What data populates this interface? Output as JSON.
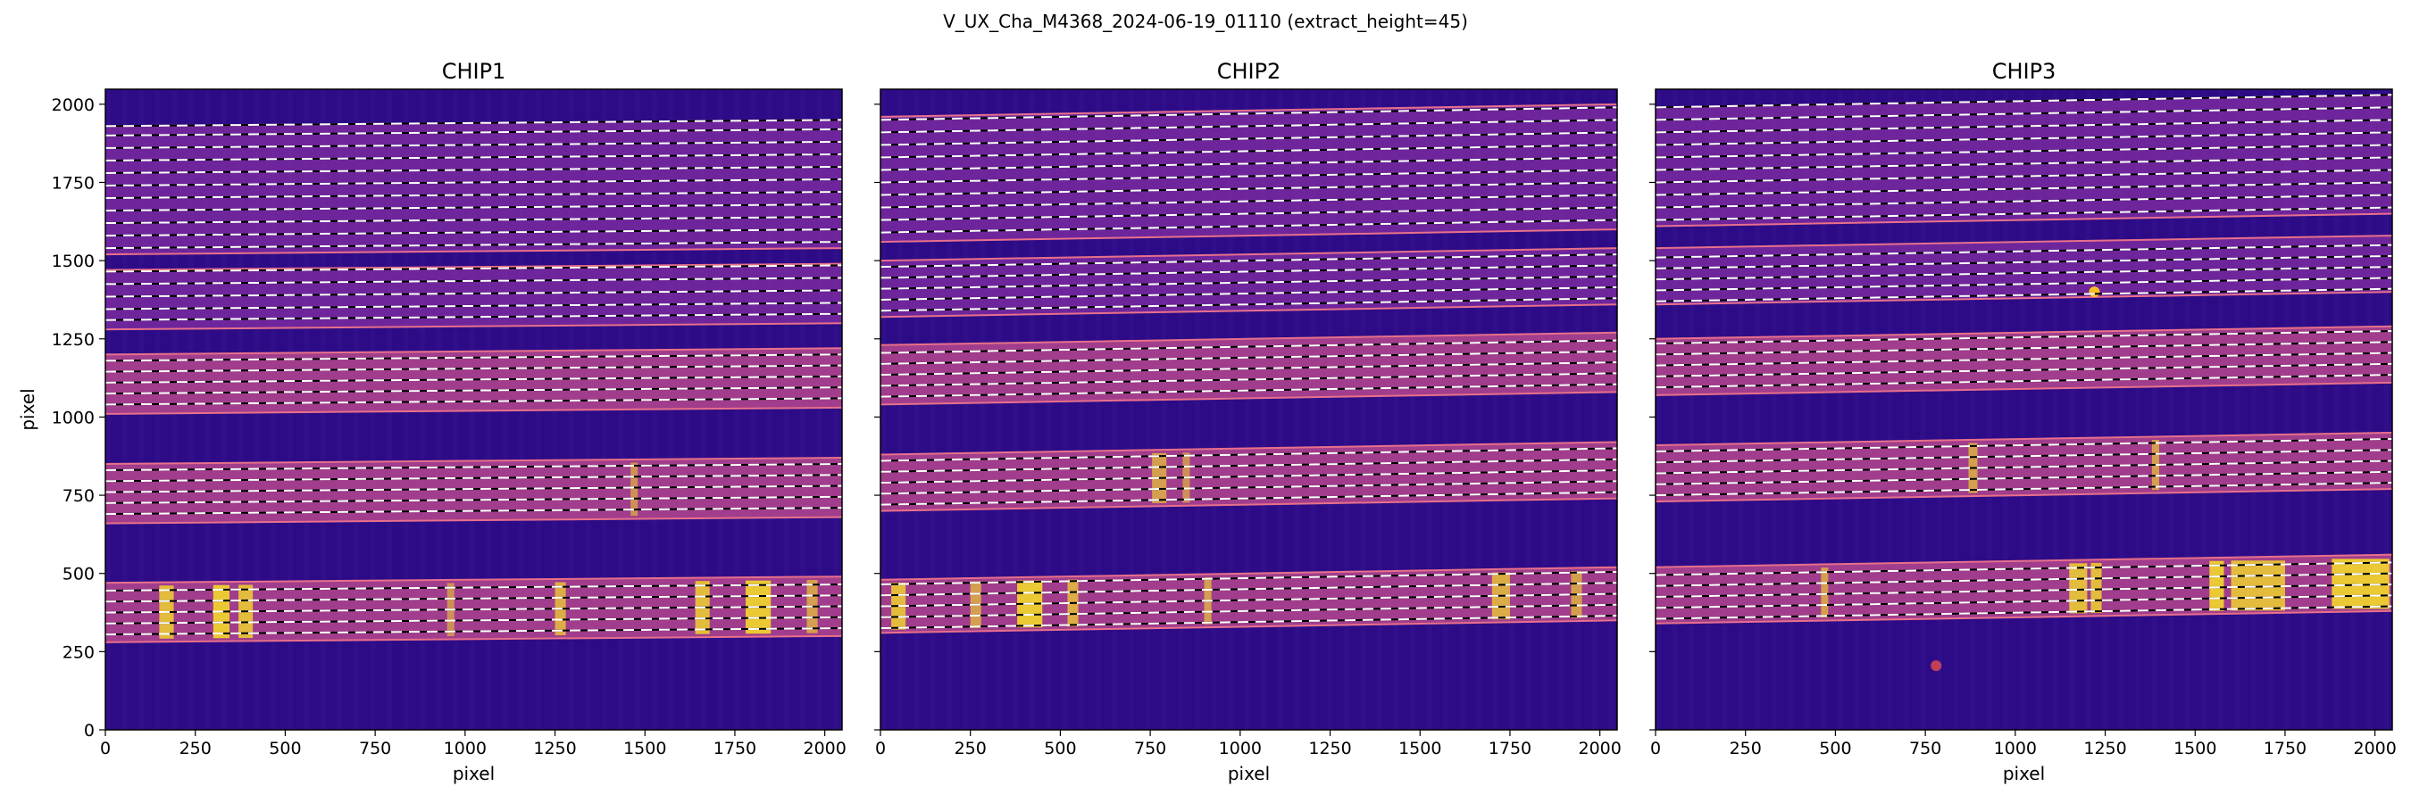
{
  "figure": {
    "suptitle": "V_UX_Cha_M4368_2024-06-19_01110  (extract_height=45)"
  },
  "colors": {
    "background": "#2d0b87",
    "trace_band": "#a8408c",
    "band_edge": "#e8708a",
    "bright_column": "#f7e225",
    "dashed_line_white": "#ffffff",
    "dashed_line_black": "#000000"
  },
  "chart_data": [
    {
      "type": "heatmap",
      "title": "CHIP1",
      "xlabel": "pixel",
      "ylabel": "pixel",
      "xlim": [
        0,
        2048
      ],
      "ylim": [
        0,
        2048
      ],
      "xticks": [
        0,
        250,
        500,
        750,
        1000,
        1250,
        1500,
        1750,
        2000
      ],
      "yticks": [
        0,
        250,
        500,
        750,
        1000,
        1250,
        1500,
        1750,
        2000
      ],
      "orders_drift_per_2048px": 20,
      "orders": [
        {
          "y_low": 1520,
          "y_high": 1930,
          "bright": false,
          "traces": [
            1540,
            1580,
            1620,
            1660,
            1700,
            1740,
            1780,
            1820,
            1860,
            1900,
            1930
          ]
        },
        {
          "y_low": 1280,
          "y_high": 1470,
          "bright": false,
          "traces": [
            1310,
            1345,
            1385,
            1425,
            1465
          ]
        },
        {
          "y_low": 1010,
          "y_high": 1200,
          "bright": true,
          "traces": [
            1040,
            1075,
            1110,
            1145,
            1180
          ]
        },
        {
          "y_low": 660,
          "y_high": 850,
          "bright": true,
          "traces": [
            690,
            725,
            760,
            795,
            830
          ]
        },
        {
          "y_low": 280,
          "y_high": 470,
          "bright": true,
          "traces": [
            305,
            340,
            375,
            410,
            445
          ]
        }
      ],
      "bright_columns": [
        {
          "x": 150,
          "width": 40,
          "y_band": [
            290,
            460
          ],
          "intensity": 0.9
        },
        {
          "x": 300,
          "width": 45,
          "y_band": [
            290,
            460
          ],
          "intensity": 1.0
        },
        {
          "x": 370,
          "width": 40,
          "y_band": [
            290,
            460
          ],
          "intensity": 0.9
        },
        {
          "x": 950,
          "width": 20,
          "y_band": [
            290,
            460
          ],
          "intensity": 0.6
        },
        {
          "x": 1250,
          "width": 30,
          "y_band": [
            290,
            460
          ],
          "intensity": 0.8
        },
        {
          "x": 1640,
          "width": 40,
          "y_band": [
            290,
            460
          ],
          "intensity": 0.9
        },
        {
          "x": 1780,
          "width": 70,
          "y_band": [
            290,
            460
          ],
          "intensity": 1.0
        },
        {
          "x": 1950,
          "width": 30,
          "y_band": [
            290,
            460
          ],
          "intensity": 0.7
        },
        {
          "x": 1460,
          "width": 20,
          "y_band": [
            670,
            840
          ],
          "intensity": 0.6
        }
      ]
    },
    {
      "type": "heatmap",
      "title": "CHIP2",
      "xlabel": "pixel",
      "ylabel": "",
      "xlim": [
        0,
        2048
      ],
      "ylim": [
        0,
        2048
      ],
      "xticks": [
        0,
        250,
        500,
        750,
        1000,
        1250,
        1500,
        1750,
        2000
      ],
      "yticks": [
        0,
        250,
        500,
        750,
        1000,
        1250,
        1500,
        1750,
        2000
      ],
      "orders_drift_per_2048px": 40,
      "orders": [
        {
          "y_low": 1560,
          "y_high": 1960,
          "bright": false,
          "traces": [
            1590,
            1630,
            1670,
            1710,
            1750,
            1790,
            1830,
            1870,
            1910,
            1950
          ]
        },
        {
          "y_low": 1320,
          "y_high": 1500,
          "bright": false,
          "traces": [
            1340,
            1375,
            1410,
            1445,
            1480
          ]
        },
        {
          "y_low": 1040,
          "y_high": 1230,
          "bright": true,
          "traces": [
            1065,
            1100,
            1135,
            1170,
            1205
          ]
        },
        {
          "y_low": 700,
          "y_high": 880,
          "bright": true,
          "traces": [
            720,
            755,
            790,
            825,
            860
          ]
        },
        {
          "y_low": 310,
          "y_high": 480,
          "bright": true,
          "traces": [
            325,
            360,
            395,
            430,
            465
          ]
        }
      ],
      "bright_columns": [
        {
          "x": 30,
          "width": 40,
          "y_band": [
            320,
            470
          ],
          "intensity": 0.9
        },
        {
          "x": 250,
          "width": 30,
          "y_band": [
            320,
            470
          ],
          "intensity": 0.7
        },
        {
          "x": 380,
          "width": 70,
          "y_band": [
            320,
            470
          ],
          "intensity": 1.0
        },
        {
          "x": 520,
          "width": 30,
          "y_band": [
            320,
            470
          ],
          "intensity": 0.8
        },
        {
          "x": 900,
          "width": 20,
          "y_band": [
            320,
            470
          ],
          "intensity": 0.7
        },
        {
          "x": 1700,
          "width": 50,
          "y_band": [
            320,
            470
          ],
          "intensity": 0.8
        },
        {
          "x": 1920,
          "width": 30,
          "y_band": [
            320,
            470
          ],
          "intensity": 0.7
        },
        {
          "x": 755,
          "width": 40,
          "y_band": [
            710,
            870
          ],
          "intensity": 0.7
        },
        {
          "x": 840,
          "width": 20,
          "y_band": [
            710,
            870
          ],
          "intensity": 0.6
        }
      ]
    },
    {
      "type": "heatmap",
      "title": "CHIP3",
      "xlabel": "pixel",
      "ylabel": "",
      "xlim": [
        0,
        2048
      ],
      "ylim": [
        0,
        2048
      ],
      "xticks": [
        0,
        250,
        500,
        750,
        1000,
        1250,
        1500,
        1750,
        2000
      ],
      "yticks": [
        0,
        250,
        500,
        750,
        1000,
        1250,
        1500,
        1750,
        2000
      ],
      "orders_drift_per_2048px": 40,
      "orders": [
        {
          "y_low": 1610,
          "y_high": 1990,
          "bright": false,
          "traces": [
            1630,
            1670,
            1710,
            1750,
            1790,
            1830,
            1870,
            1910,
            1950,
            1990
          ]
        },
        {
          "y_low": 1360,
          "y_high": 1540,
          "bright": false,
          "traces": [
            1370,
            1405,
            1440,
            1475,
            1510
          ]
        },
        {
          "y_low": 1070,
          "y_high": 1250,
          "bright": true,
          "traces": [
            1095,
            1130,
            1165,
            1200,
            1235
          ]
        },
        {
          "y_low": 730,
          "y_high": 910,
          "bright": true,
          "traces": [
            750,
            785,
            820,
            855,
            890
          ]
        },
        {
          "y_low": 340,
          "y_high": 520,
          "bright": true,
          "traces": [
            355,
            390,
            425,
            460,
            495
          ]
        }
      ],
      "bright_columns": [
        {
          "x": 460,
          "width": 20,
          "y_band": [
            350,
            510
          ],
          "intensity": 0.7
        },
        {
          "x": 1150,
          "width": 50,
          "y_band": [
            350,
            510
          ],
          "intensity": 0.9
        },
        {
          "x": 1210,
          "width": 30,
          "y_band": [
            350,
            510
          ],
          "intensity": 0.9
        },
        {
          "x": 1540,
          "width": 40,
          "y_band": [
            350,
            510
          ],
          "intensity": 1.0
        },
        {
          "x": 1600,
          "width": 150,
          "y_band": [
            350,
            510
          ],
          "intensity": 0.9
        },
        {
          "x": 1880,
          "width": 160,
          "y_band": [
            350,
            510
          ],
          "intensity": 1.0
        },
        {
          "x": 870,
          "width": 25,
          "y_band": [
            740,
            900
          ],
          "intensity": 0.7
        },
        {
          "x": 1380,
          "width": 20,
          "y_band": [
            740,
            900
          ],
          "intensity": 0.7
        }
      ],
      "spots": [
        {
          "x": 780,
          "y": 205,
          "color": "#c0405a"
        },
        {
          "x": 1220,
          "y": 1400,
          "color": "#f7c020"
        }
      ]
    }
  ]
}
